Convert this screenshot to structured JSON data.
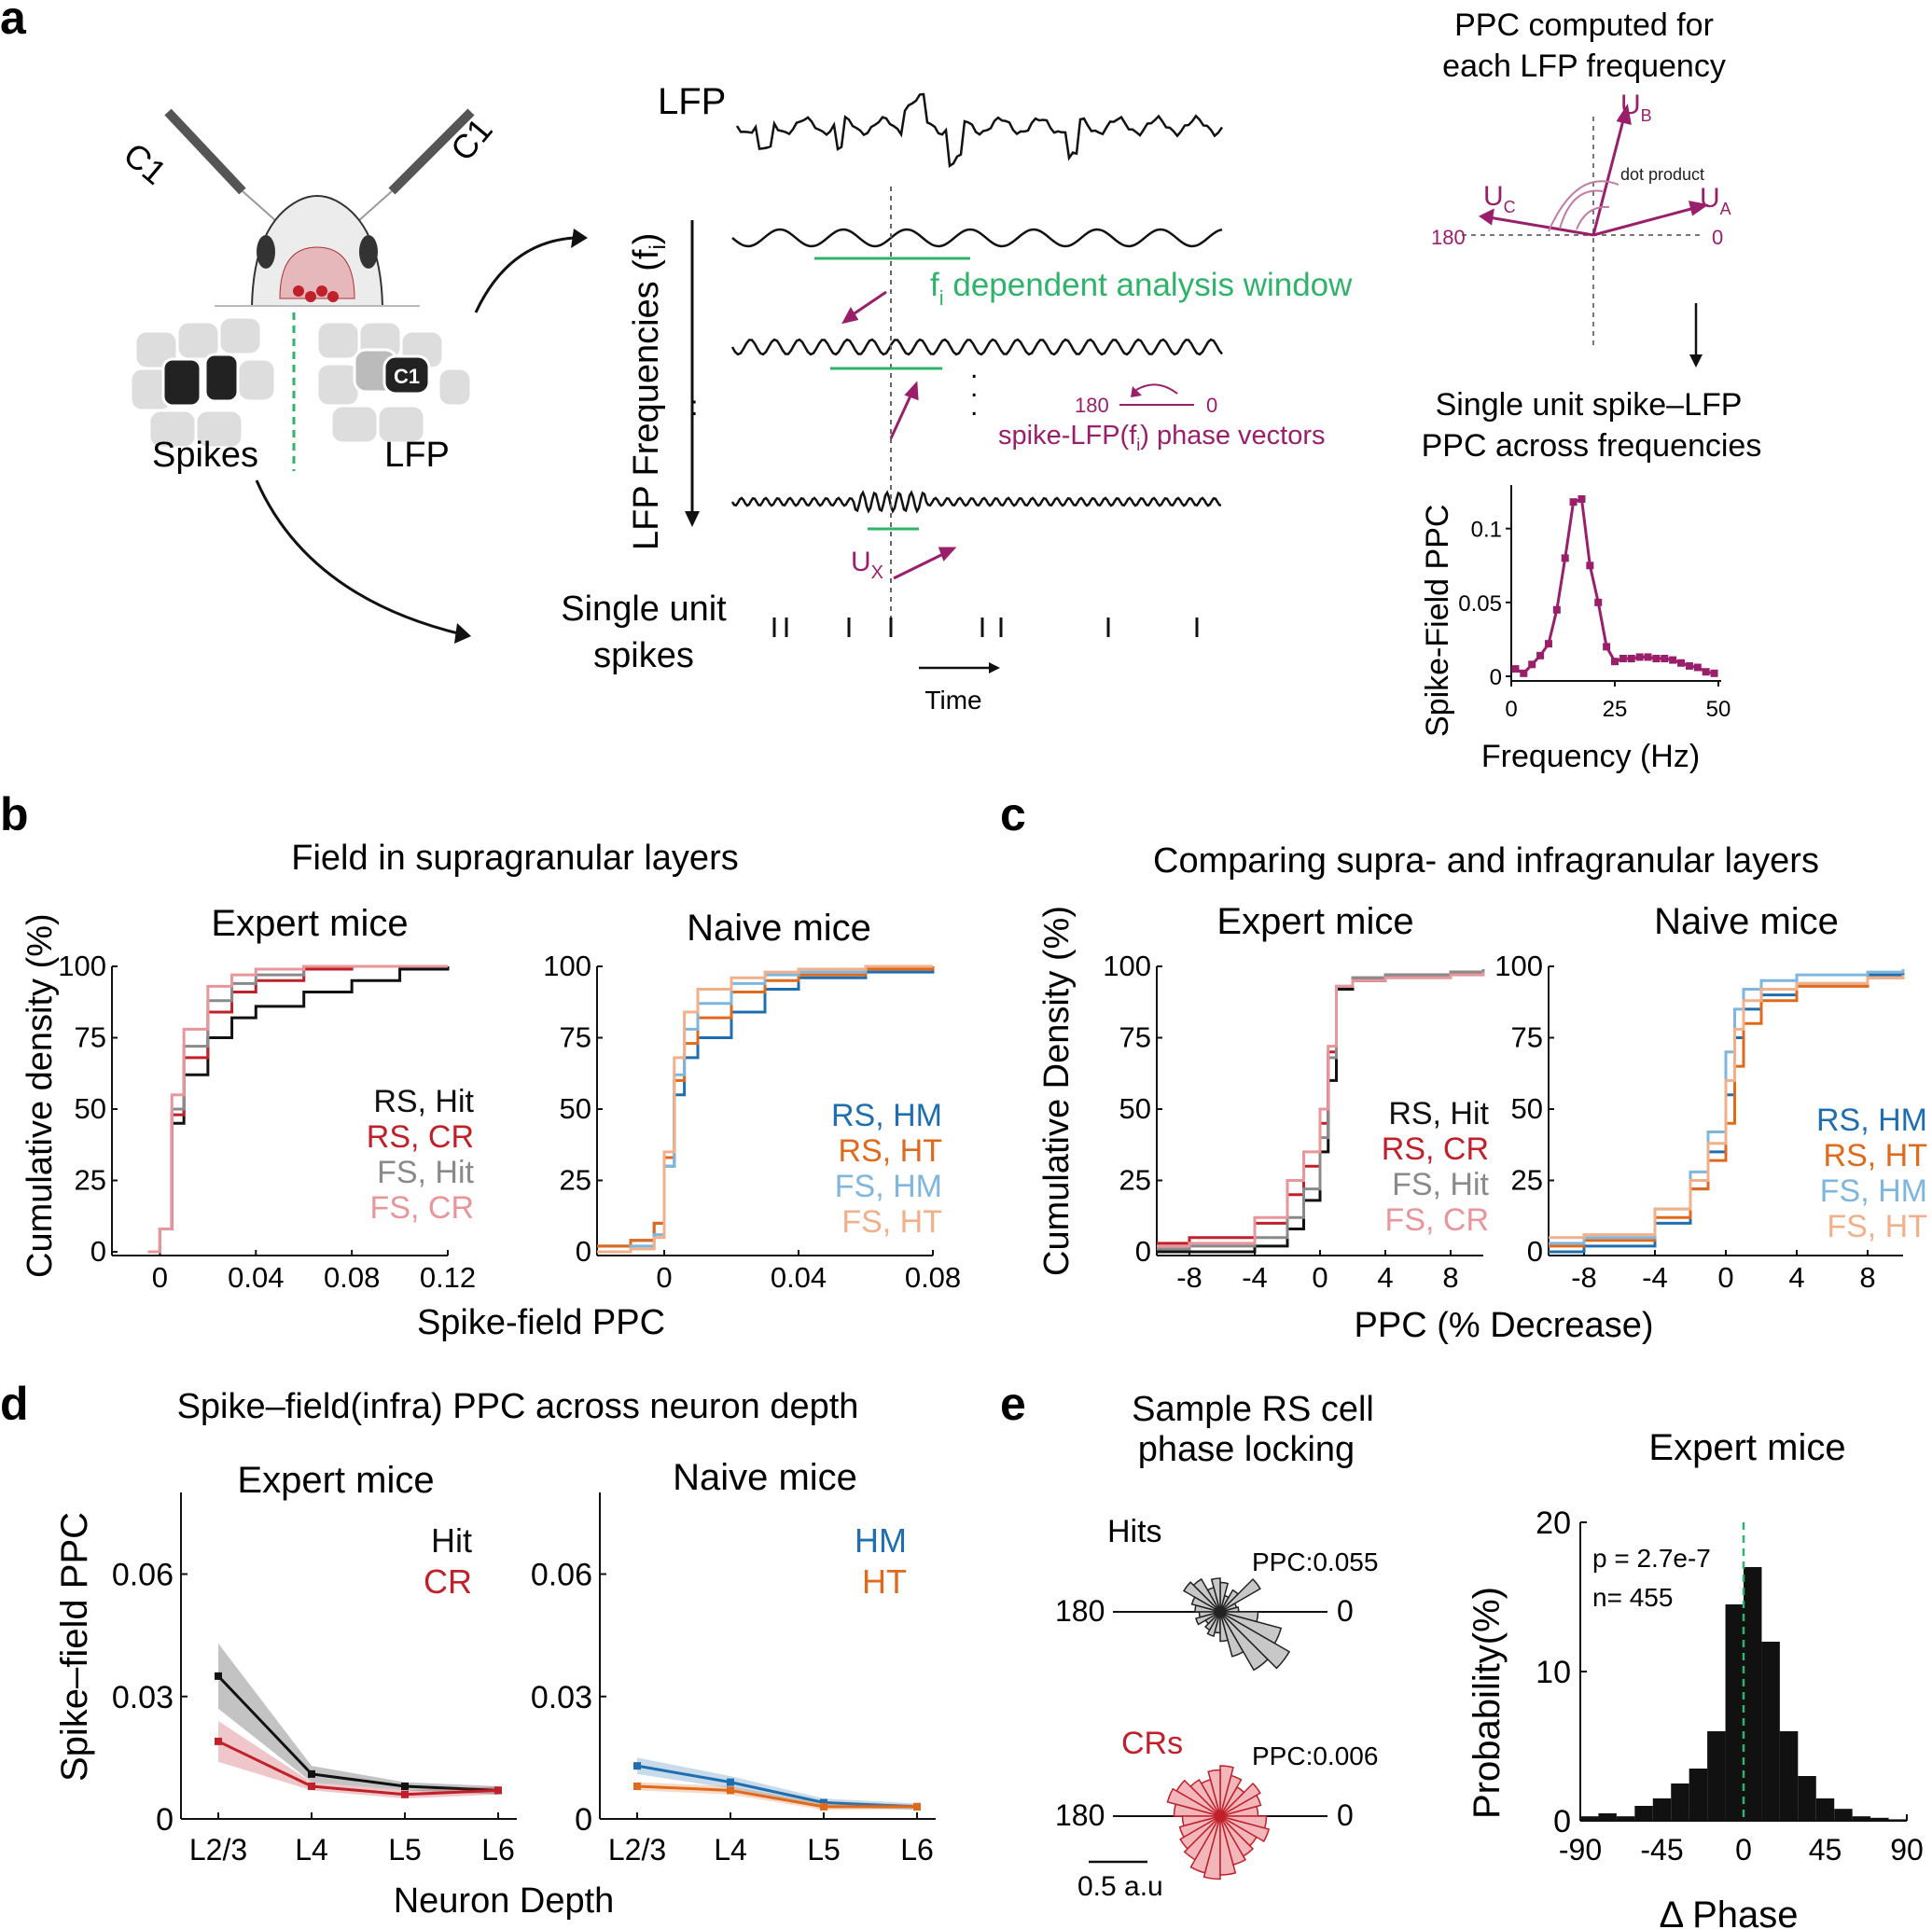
{
  "panel_labels": {
    "a": "a",
    "b": "b",
    "c": "c",
    "d": "d",
    "e": "e"
  },
  "colors": {
    "black": "#111111",
    "red": "#c0202a",
    "gray": "#8a8a8a",
    "pink": "#e8959b",
    "blue": "#1f6fb0",
    "orange": "#e06a1c",
    "lightblue": "#7fb6de",
    "peach": "#f0b08a",
    "purple": "#9a1f6a",
    "green": "#2fb36b"
  },
  "panel_a": {
    "probe_label_left": "C1",
    "probe_label_right": "C1",
    "barrel_label": "C1",
    "spikes_label": "Spikes",
    "lfp_label": "LFP",
    "trace_lfp_label": "LFP",
    "freq_axis_label": "LFP Frequencies (f",
    "freq_axis_sub": "i",
    "window_label": "dependent analysis window",
    "window_f": "f",
    "window_sub": "i",
    "phase_vec_label": "spike-LFP(f",
    "phase_vec_sub": "i",
    "phase_vec_tail": ") phase vectors",
    "ux_label": "U",
    "ux_sub": "X",
    "spikes_line1": "Single unit",
    "spikes_line2": "spikes",
    "time_label": "Time",
    "small_180": "180",
    "small_0": "0",
    "ppc_title1": "PPC computed for",
    "ppc_title2": "each LFP frequency",
    "ua": "U",
    "ua_sub": "A",
    "ub": "U",
    "ub_sub": "B",
    "uc": "U",
    "uc_sub": "C",
    "dot_product": "dot product",
    "v180": "180",
    "v0": "0",
    "result_title1": "Single unit spike–LFP",
    "result_title2": "PPC across frequencies"
  },
  "chart_data": [
    {
      "id": "a-inset",
      "type": "line",
      "ylabel": "Spike-Field PPC",
      "xlabel": "Frequency (Hz)",
      "xlim": [
        0,
        50
      ],
      "ylim": [
        0,
        0.12
      ],
      "xticks": [
        "0",
        "25",
        "50"
      ],
      "yticks": [
        "0",
        "0.05",
        "0.1"
      ],
      "x": [
        1,
        3,
        5,
        7,
        9,
        11,
        13,
        15,
        17,
        19,
        21,
        23,
        25,
        27,
        29,
        31,
        33,
        35,
        37,
        39,
        41,
        43,
        45,
        47,
        49
      ],
      "values": [
        0.005,
        0.002,
        0.008,
        0.014,
        0.022,
        0.045,
        0.08,
        0.118,
        0.12,
        0.075,
        0.05,
        0.02,
        0.01,
        0.012,
        0.012,
        0.013,
        0.013,
        0.012,
        0.012,
        0.011,
        0.009,
        0.007,
        0.006,
        0.003,
        0.002
      ]
    },
    {
      "id": "b-expert",
      "type": "line",
      "title": "Expert mice",
      "ylabel": "Cumulative density (%)",
      "xlim": [
        -0.02,
        0.12
      ],
      "ylim": [
        0,
        100
      ],
      "xticks": [
        "0",
        "0.04",
        "0.08",
        "0.12"
      ],
      "yticks": [
        "0",
        "25",
        "50",
        "75",
        "100"
      ],
      "series": [
        {
          "name": "RS, Hit",
          "x": [
            -0.005,
            0,
            0.005,
            0.01,
            0.02,
            0.03,
            0.04,
            0.06,
            0.08,
            0.1,
            0.12
          ],
          "values": [
            0,
            8,
            45,
            62,
            75,
            82,
            86,
            91,
            95,
            99,
            100
          ]
        },
        {
          "name": "RS, CR",
          "x": [
            -0.005,
            0,
            0.005,
            0.01,
            0.02,
            0.03,
            0.04,
            0.06,
            0.08,
            0.1
          ],
          "values": [
            0,
            8,
            48,
            68,
            84,
            91,
            95,
            99,
            100,
            100
          ]
        },
        {
          "name": "FS, Hit",
          "x": [
            -0.005,
            0,
            0.005,
            0.01,
            0.02,
            0.03,
            0.04,
            0.06,
            0.08
          ],
          "values": [
            0,
            8,
            50,
            72,
            88,
            94,
            97,
            100,
            100
          ]
        },
        {
          "name": "FS, CR",
          "x": [
            -0.005,
            0,
            0.005,
            0.01,
            0.02,
            0.03,
            0.04,
            0.06,
            0.08
          ],
          "values": [
            0,
            8,
            55,
            78,
            93,
            97,
            99,
            100,
            100
          ]
        }
      ]
    },
    {
      "id": "b-naive",
      "type": "line",
      "title": "Naive mice",
      "xlim": [
        -0.02,
        0.08
      ],
      "ylim": [
        0,
        100
      ],
      "xticks": [
        "0",
        "0.04",
        "0.08"
      ],
      "yticks": [
        "0",
        "25",
        "50",
        "75",
        "100"
      ],
      "series": [
        {
          "name": "RS, HM",
          "x": [
            -0.02,
            -0.01,
            -0.003,
            0,
            0.003,
            0.006,
            0.01,
            0.02,
            0.03,
            0.04,
            0.06,
            0.08
          ],
          "values": [
            2,
            4,
            10,
            30,
            55,
            68,
            75,
            84,
            92,
            96,
            98,
            100
          ]
        },
        {
          "name": "RS, HT",
          "x": [
            -0.02,
            -0.01,
            -0.003,
            0,
            0.003,
            0.006,
            0.01,
            0.02,
            0.03,
            0.04,
            0.06,
            0.08
          ],
          "values": [
            2,
            4,
            10,
            33,
            60,
            73,
            82,
            91,
            95,
            97,
            99,
            100
          ]
        },
        {
          "name": "FS, HM",
          "x": [
            -0.02,
            -0.01,
            -0.003,
            0,
            0.003,
            0.006,
            0.01,
            0.02,
            0.03,
            0.04,
            0.06
          ],
          "values": [
            0,
            2,
            6,
            30,
            62,
            78,
            87,
            94,
            97,
            98,
            100
          ]
        },
        {
          "name": "FS, HT",
          "x": [
            -0.02,
            -0.01,
            -0.003,
            0,
            0.003,
            0.006,
            0.01,
            0.02,
            0.03,
            0.04,
            0.06
          ],
          "values": [
            0,
            1,
            5,
            35,
            68,
            84,
            92,
            96,
            98,
            99,
            100
          ]
        }
      ]
    },
    {
      "id": "c-expert",
      "type": "line",
      "title": "Expert mice",
      "ylabel": "Cumulative Density (%)",
      "xlim": [
        -10,
        10
      ],
      "ylim": [
        0,
        100
      ],
      "xticks": [
        "-8",
        "-4",
        "0",
        "4",
        "8"
      ],
      "yticks": [
        "0",
        "25",
        "50",
        "75",
        "100"
      ],
      "series": [
        {
          "name": "RS, Hit",
          "x": [
            -10,
            -8,
            -4,
            -2,
            -1,
            0,
            0.5,
            1,
            2,
            4,
            8,
            10
          ],
          "values": [
            0,
            0,
            2,
            8,
            18,
            35,
            60,
            92,
            95,
            97,
            98,
            99
          ]
        },
        {
          "name": "RS, CR",
          "x": [
            -10,
            -8,
            -4,
            -2,
            -1,
            0,
            0.5,
            1,
            2,
            4,
            8,
            10
          ],
          "values": [
            3,
            5,
            10,
            20,
            30,
            45,
            70,
            93,
            96,
            97,
            98,
            99
          ]
        },
        {
          "name": "FS, Hit",
          "x": [
            -10,
            -8,
            -4,
            -2,
            -1,
            0,
            0.5,
            1,
            2,
            4,
            8,
            10
          ],
          "values": [
            1,
            2,
            5,
            12,
            22,
            40,
            68,
            93,
            96,
            97,
            98,
            99
          ]
        },
        {
          "name": "FS, CR",
          "x": [
            -10,
            -8,
            -4,
            -2,
            -1,
            0,
            0.5,
            1,
            2,
            4,
            8,
            10
          ],
          "values": [
            2,
            3,
            12,
            25,
            35,
            50,
            72,
            93,
            95,
            96,
            97,
            98
          ]
        }
      ]
    },
    {
      "id": "c-naive",
      "type": "line",
      "title": "Naive mice",
      "xlim": [
        -10,
        10
      ],
      "ylim": [
        0,
        100
      ],
      "xticks": [
        "-8",
        "-4",
        "0",
        "4",
        "8"
      ],
      "yticks": [
        "0",
        "25",
        "50",
        "75",
        "100"
      ],
      "series": [
        {
          "name": "RS, HM",
          "x": [
            -10,
            -8,
            -4,
            -2,
            -1,
            0,
            0.5,
            1,
            2,
            4,
            8,
            10
          ],
          "values": [
            0,
            2,
            10,
            22,
            35,
            55,
            75,
            85,
            90,
            94,
            97,
            98
          ]
        },
        {
          "name": "RS, HT",
          "x": [
            -10,
            -8,
            -4,
            -2,
            -1,
            0,
            0.5,
            1,
            2,
            4,
            8,
            10
          ],
          "values": [
            2,
            4,
            12,
            22,
            32,
            45,
            65,
            80,
            88,
            93,
            96,
            97
          ]
        },
        {
          "name": "FS, HM",
          "x": [
            -10,
            -8,
            -4,
            -2,
            -1,
            0,
            0.5,
            1,
            2,
            4,
            8,
            10
          ],
          "values": [
            3,
            5,
            15,
            28,
            42,
            70,
            85,
            92,
            95,
            97,
            98,
            99
          ]
        },
        {
          "name": "FS, HT",
          "x": [
            -10,
            -8,
            -4,
            -2,
            -1,
            0,
            0.5,
            1,
            2,
            4,
            8,
            10
          ],
          "values": [
            5,
            6,
            15,
            25,
            38,
            60,
            78,
            88,
            92,
            94,
            96,
            97
          ]
        }
      ]
    },
    {
      "id": "d-expert",
      "type": "line",
      "title": "Expert mice",
      "ylabel": "Spike–field PPC",
      "categories": [
        "L2/3",
        "L4",
        "L5",
        "L6"
      ],
      "ylim": [
        0,
        0.08
      ],
      "yticks": [
        "0",
        "0.03",
        "0.06"
      ],
      "series": [
        {
          "name": "Hit",
          "values": [
            0.035,
            0.011,
            0.008,
            0.007
          ],
          "sem": [
            0.008,
            0.002,
            0.001,
            0.001
          ]
        },
        {
          "name": "CR",
          "values": [
            0.019,
            0.008,
            0.006,
            0.007
          ],
          "sem": [
            0.005,
            0.001,
            0.001,
            0.001
          ]
        }
      ]
    },
    {
      "id": "d-naive",
      "type": "line",
      "title": "Naive mice",
      "categories": [
        "L2/3",
        "L4",
        "L5",
        "L6"
      ],
      "ylim": [
        0,
        0.08
      ],
      "yticks": [
        "0",
        "0.03",
        "0.06"
      ],
      "series": [
        {
          "name": "HM",
          "values": [
            0.013,
            0.009,
            0.004,
            0.003
          ],
          "sem": [
            0.002,
            0.0015,
            0.001,
            0.0008
          ]
        },
        {
          "name": "HT",
          "values": [
            0.008,
            0.007,
            0.003,
            0.003
          ],
          "sem": [
            0.001,
            0.001,
            0.0008,
            0.0006
          ]
        }
      ]
    },
    {
      "id": "e-hist",
      "type": "bar",
      "title": "Expert mice",
      "ylabel": "Probability(%)",
      "xlabel": "Δ Phase",
      "xlim": [
        -90,
        90
      ],
      "ylim": [
        0,
        20
      ],
      "xticks": [
        "-90",
        "-45",
        "0",
        "45",
        "90"
      ],
      "yticks": [
        "0",
        "10",
        "20"
      ],
      "x": [
        -85,
        -75,
        -65,
        -55,
        -45,
        -35,
        -25,
        -15,
        -5,
        5,
        15,
        25,
        35,
        45,
        55,
        65,
        75,
        85
      ],
      "values": [
        0.3,
        0.5,
        0.3,
        1.0,
        1.5,
        2.5,
        3.5,
        6,
        14.5,
        17,
        12,
        6,
        3,
        1.5,
        0.8,
        0.3,
        0.2,
        0.1
      ]
    }
  ],
  "panel_b": {
    "title": "Field in supragranular layers",
    "xlabel": "Spike-field PPC",
    "legend_expert": [
      "RS, Hit",
      "RS, CR",
      "FS, Hit",
      "FS, CR"
    ],
    "legend_naive": [
      "RS, HM",
      "RS, HT",
      "FS, HM",
      "FS, HT"
    ]
  },
  "panel_c": {
    "title": "Comparing supra- and infragranular layers",
    "xlabel": "PPC (% Decrease)",
    "legend_expert": [
      "RS, Hit",
      "RS, CR",
      "FS, Hit",
      "FS, CR"
    ],
    "legend_naive": [
      "RS, HM",
      "RS, HT",
      "FS, HM",
      "FS, HT"
    ]
  },
  "panel_d": {
    "title": "Spike–field(infra) PPC across neuron depth",
    "xlabel": "Neuron Depth",
    "legend_expert": [
      "Hit",
      "CR"
    ],
    "legend_naive": [
      "HM",
      "HT"
    ]
  },
  "panel_e": {
    "rose_title1": "Sample RS cell",
    "rose_title2": "phase locking",
    "hits_label": "Hits",
    "crs_label": "CRs",
    "ppc_hits": "PPC:0.055",
    "ppc_crs": "PPC:0.006",
    "r180": "180",
    "r0": "0",
    "scale_label": "0.5 a.u",
    "pvalue": "p = 2.7e-7",
    "n": "n= 455",
    "hits_petals": [
      0.22,
      0.2,
      0.55,
      0.3,
      0.2,
      0.35,
      0.4,
      0.3,
      0.45,
      0.5,
      0.35,
      0.3,
      0.25,
      0.3,
      0.2,
      0.25,
      0.3,
      0.25,
      0.35,
      0.55,
      0.8,
      0.95,
      0.75,
      0.45
    ],
    "crs_petals": [
      0.45,
      0.5,
      0.55,
      0.4,
      0.5,
      0.6,
      0.55,
      0.45,
      0.5,
      0.6,
      0.65,
      0.55,
      0.45,
      0.5,
      0.55,
      0.6,
      0.7,
      0.75,
      0.7,
      0.6,
      0.55,
      0.5,
      0.6,
      0.55
    ]
  }
}
